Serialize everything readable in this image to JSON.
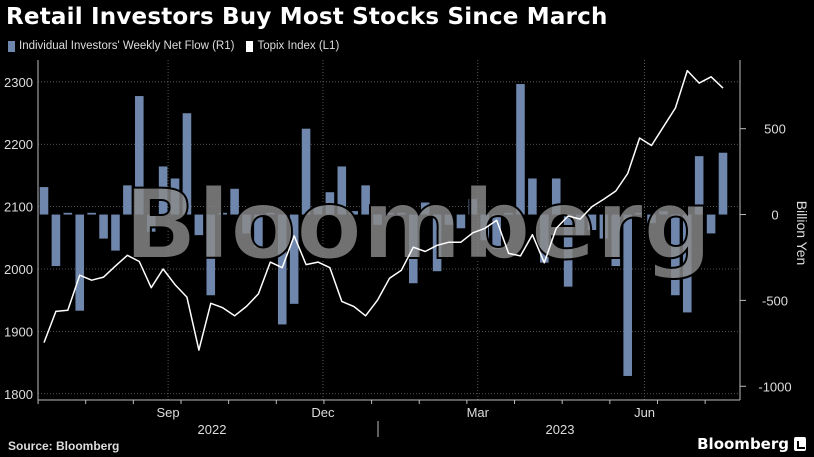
{
  "title": "Retail Investors Buy Most Stocks Since March",
  "legend": [
    {
      "label": "Individual Investors' Weekly Net Flow (R1)",
      "color": "#6f86ad"
    },
    {
      "label": "Topix Index (L1)",
      "color": "#ffffff"
    }
  ],
  "source": "Source: Bloomberg",
  "brand": "Bloomberg",
  "watermark": "Bloomberg",
  "chart_data": {
    "type": "bar",
    "title": "Retail Investors Buy Most Stocks Since March",
    "x_month_labels": [
      "Sep",
      "Dec",
      "Mar",
      "Jun"
    ],
    "x_year_labels": [
      "2022",
      "2023"
    ],
    "left_axis": {
      "ticks": [
        1800,
        1900,
        2000,
        2100,
        2200,
        2300
      ],
      "range": [
        1790,
        2335
      ]
    },
    "right_axis": {
      "label": "Billion Yen",
      "ticks": [
        -1000,
        -500,
        0,
        500
      ],
      "range": [
        -1080,
        900
      ]
    },
    "series": [
      {
        "name": "Individual Investors' Weekly Net Flow (R1)",
        "axis": "right",
        "type": "bar",
        "values": [
          160,
          -300,
          10,
          -560,
          10,
          -140,
          -210,
          170,
          690,
          -100,
          280,
          210,
          590,
          -120,
          -470,
          10,
          150,
          -110,
          -190,
          10,
          -640,
          -520,
          500,
          50,
          130,
          280,
          20,
          170,
          -60,
          10,
          10,
          -400,
          70,
          -330,
          -60,
          -80,
          90,
          -150,
          -200,
          10,
          760,
          210,
          -280,
          210,
          -420,
          -130,
          -90,
          -140,
          -300,
          -940,
          10,
          -50,
          20,
          -470,
          -570,
          340,
          -110,
          360
        ]
      },
      {
        "name": "Topix Index (L1)",
        "axis": "left",
        "type": "line",
        "values": [
          1882,
          1932,
          1934,
          1990,
          1982,
          1987,
          2005,
          2022,
          2012,
          1970,
          2000,
          1975,
          1955,
          1870,
          1945,
          1938,
          1925,
          1940,
          1960,
          2011,
          2002,
          2053,
          2007,
          2011,
          2002,
          1948,
          1940,
          1925,
          1950,
          1985,
          1998,
          2035,
          2028,
          2038,
          2043,
          2043,
          2058,
          2065,
          2078,
          2025,
          2021,
          2055,
          2010,
          2065,
          2085,
          2080,
          2100,
          2112,
          2125,
          2153,
          2210,
          2198,
          2228,
          2258,
          2318,
          2298,
          2308,
          2290
        ]
      }
    ]
  }
}
